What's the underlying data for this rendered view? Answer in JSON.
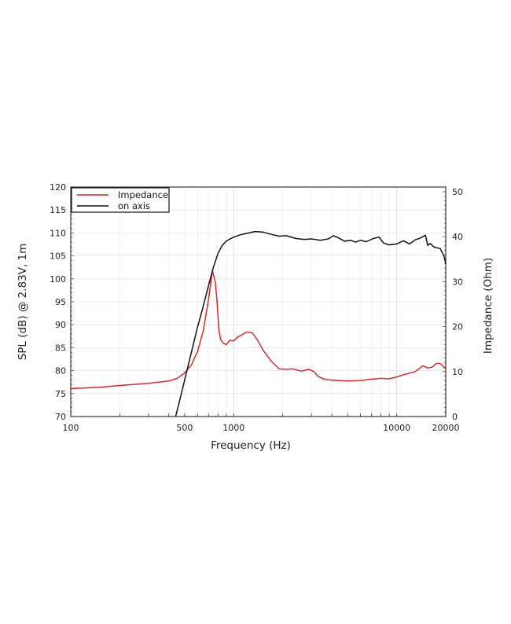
{
  "chart_data": {
    "type": "line",
    "title": "",
    "xlabel": "Frequency (Hz)",
    "ylabel": "SPL (dB) @ 2.83V, 1m",
    "ylabel_right": "Impedance (Ohm)",
    "xscale": "log",
    "xlim": [
      100,
      20000
    ],
    "ylim": [
      70,
      120
    ],
    "ylim_right": [
      0,
      50
    ],
    "grid": true,
    "legend_position": "upper left",
    "x_tick_labels": [
      "100",
      "500",
      "1000",
      "10000",
      "20000"
    ],
    "x_ticks": [
      100,
      500,
      1000,
      10000,
      20000
    ],
    "y_ticks": [
      70,
      75,
      80,
      85,
      90,
      95,
      100,
      105,
      110,
      115,
      120
    ],
    "y_ticks_right": [
      0,
      10,
      20,
      30,
      40,
      50
    ],
    "series": [
      {
        "name": "Impedance",
        "axis": "right",
        "color": "#d42a2a",
        "x": [
          100,
          150,
          200,
          300,
          400,
          450,
          500,
          550,
          600,
          650,
          700,
          740,
          770,
          790,
          810,
          830,
          860,
          900,
          950,
          1000,
          1050,
          1100,
          1200,
          1300,
          1400,
          1500,
          1700,
          1900,
          2100,
          2300,
          2600,
          2900,
          3100,
          3300,
          3600,
          4000,
          5000,
          6000,
          7000,
          8000,
          9000,
          10000,
          11000,
          13000,
          14500,
          15500,
          16500,
          17500,
          18500,
          20000
        ],
        "values": [
          6.2,
          6.5,
          6.9,
          7.4,
          7.9,
          8.5,
          9.7,
          11.5,
          14.5,
          19.0,
          26.0,
          32.5,
          30.0,
          25.5,
          19.5,
          17.2,
          16.4,
          16.0,
          17.0,
          16.8,
          17.6,
          18.0,
          18.8,
          18.6,
          17.0,
          15.0,
          12.3,
          10.6,
          10.5,
          10.6,
          10.1,
          10.5,
          10.0,
          8.9,
          8.3,
          8.1,
          7.9,
          8.0,
          8.3,
          8.5,
          8.4,
          8.8,
          9.3,
          10.0,
          11.3,
          10.8,
          11.0,
          11.8,
          11.8,
          10.6
        ]
      },
      {
        "name": "on axis",
        "axis": "left",
        "color": "#111111",
        "x": [
          440,
          470,
          500,
          550,
          600,
          650,
          700,
          750,
          800,
          850,
          900,
          950,
          1000,
          1100,
          1200,
          1350,
          1500,
          1700,
          1900,
          2100,
          2400,
          2700,
          3000,
          3400,
          3800,
          4100,
          4400,
          4800,
          5200,
          5600,
          6000,
          6500,
          7200,
          7800,
          8300,
          9000,
          10000,
          11000,
          12000,
          13000,
          14000,
          15000,
          15500,
          16000,
          17000,
          18500,
          19500,
          20000
        ],
        "values": [
          70.0,
          74.0,
          78.0,
          84.0,
          89.5,
          94.0,
          98.5,
          102.5,
          105.5,
          107.3,
          108.2,
          108.7,
          109.1,
          109.6,
          109.9,
          110.3,
          110.2,
          109.7,
          109.3,
          109.4,
          108.8,
          108.6,
          108.7,
          108.4,
          108.7,
          109.4,
          108.9,
          108.2,
          108.4,
          108.0,
          108.4,
          108.1,
          108.8,
          109.1,
          107.8,
          107.4,
          107.6,
          108.3,
          107.6,
          108.5,
          108.9,
          109.5,
          107.3,
          107.7,
          106.9,
          106.6,
          105.0,
          103.3
        ]
      }
    ]
  },
  "legend": {
    "items": [
      {
        "label": "Impedance",
        "color": "#d42a2a"
      },
      {
        "label": "on axis",
        "color": "#111111"
      }
    ]
  }
}
